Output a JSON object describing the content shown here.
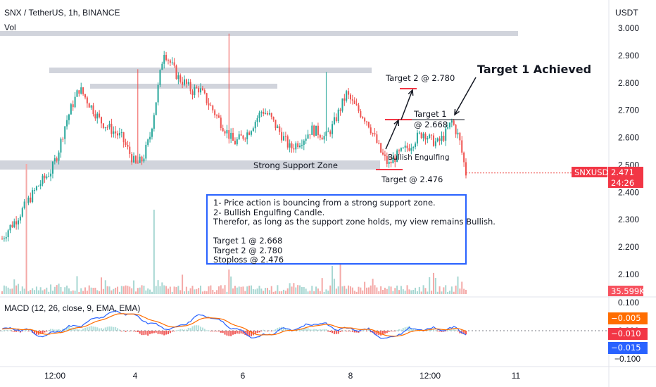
{
  "header": {
    "title": "SNX / TetherUS, 1h, BINANCE",
    "vol_label": "Vol",
    "currency": "USDT"
  },
  "price_axis": {
    "ticks": [
      "3.000",
      "2.900",
      "2.800",
      "2.700",
      "2.600",
      "2.500",
      "2.400",
      "2.300",
      "2.200",
      "2.100"
    ],
    "symbol_tag": "SNXUSDT",
    "last_price": "2.471",
    "countdown": "24:26",
    "volume_tag": "35.599K"
  },
  "macd": {
    "label": "MACD (12, 26, close, 9, EMA, EMA)",
    "ticks": [
      "0.100",
      "0.000",
      "−0.100"
    ],
    "tag_orange": "−0.005",
    "tag_red": "−0.010",
    "tag_blue": "−0.015",
    "colors": {
      "macd": "#2962ff",
      "signal": "#ff6d00",
      "hist_up": "#26a69a",
      "hist_down": "#ef5350"
    }
  },
  "time_axis": {
    "ticks": [
      "12:00",
      "4",
      "6",
      "8",
      "12:00",
      "11"
    ]
  },
  "annotations": {
    "strong_support": "Strong Support Zone",
    "bullish_engulfing": "Bullish Engulfing",
    "target1_achieved": "Target 1 Achieved",
    "target2": "Target 2 @ 2.780",
    "target1_line1": "Target 1",
    "target1_line2": "@ 2.668",
    "stop_target": "Target @ 2.476"
  },
  "note": {
    "lines": [
      "1- Price action is bouncing from a strong support zone.",
      "2- Bullish Engulfing Candle.",
      "Therefor, as long as the support zone holds, my view remains Bullish.",
      "",
      "Target 1 @ 2.668",
      "Target 2 @ 2.780",
      "Stoploss @ 2.476"
    ]
  },
  "colors": {
    "up": "#26a69a",
    "down": "#ef5350",
    "zone": "#d1d4dc",
    "accent_red": "#f23645",
    "box": "#2962ff"
  },
  "chart_data": {
    "type": "candlestick",
    "title": "SNX / TetherUS, 1h, BINANCE",
    "ylabel": "USDT",
    "ylim": [
      2.05,
      3.05
    ],
    "x_ticks": [
      "12:00",
      "4",
      "6",
      "8",
      "12:00",
      "11"
    ],
    "key_levels": {
      "resistance_zones": [
        2.98,
        2.84,
        2.79
      ],
      "support_zone": 2.49,
      "target_1": 2.668,
      "target_2": 2.78,
      "stoploss": 2.476,
      "last_price": 2.471
    },
    "close_path": [
      2.23,
      2.27,
      2.3,
      2.34,
      2.38,
      2.42,
      2.45,
      2.48,
      2.55,
      2.65,
      2.72,
      2.78,
      2.74,
      2.7,
      2.66,
      2.64,
      2.62,
      2.6,
      2.55,
      2.5,
      2.52,
      2.6,
      2.75,
      2.92,
      2.87,
      2.82,
      2.8,
      2.77,
      2.78,
      2.74,
      2.7,
      2.66,
      2.62,
      2.58,
      2.6,
      2.62,
      2.66,
      2.7,
      2.68,
      2.64,
      2.6,
      2.56,
      2.58,
      2.6,
      2.63,
      2.62,
      2.6,
      2.64,
      2.7,
      2.76,
      2.72,
      2.69,
      2.66,
      2.6,
      2.54,
      2.5,
      2.53,
      2.55,
      2.57,
      2.6,
      2.62,
      2.59,
      2.58,
      2.61,
      2.66,
      2.6,
      2.47
    ],
    "volume_scale_k": 35.599,
    "macd": {
      "ylim": [
        -0.1,
        0.1
      ],
      "macd_last": -0.015,
      "signal_last": -0.005,
      "hist_last": -0.01
    }
  }
}
